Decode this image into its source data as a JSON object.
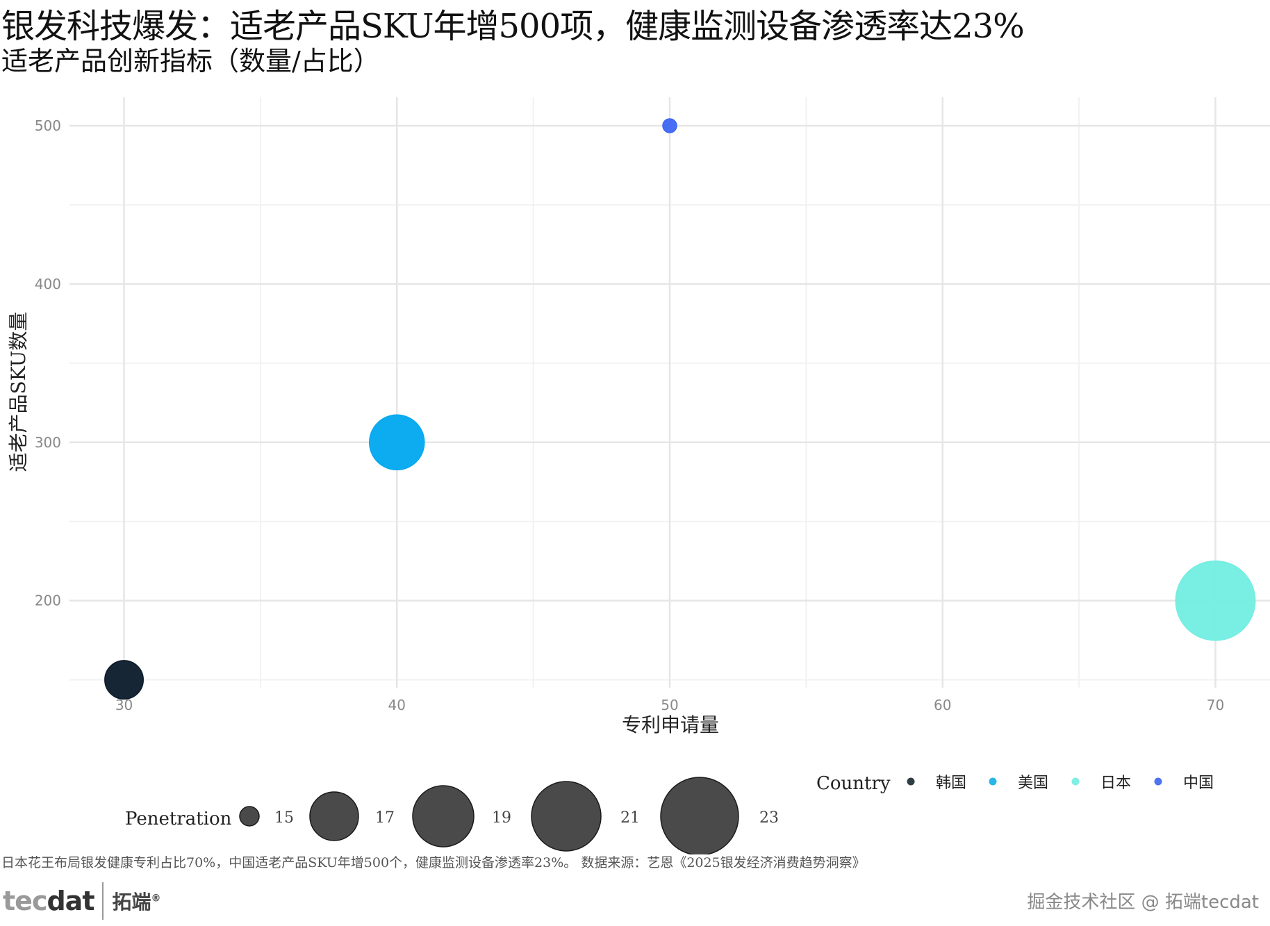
{
  "title": "银发科技爆发：适老产品SKU年增500项，健康监测设备渗透率达23%",
  "subtitle": "适老产品创新指标（数量/占比）",
  "caption": "日本花王布局银发健康专利占比70%，中国适老产品SKU年增500个，健康监测设备渗透率23%。 数据来源：艺恩《2025银发经济消费趋势洞察》",
  "logo": {
    "mark_left": "tec",
    "mark_right": "dat",
    "cn": "拓端",
    "reg": "®"
  },
  "watermark": "掘金技术社区 @ 拓端tecdat",
  "chart_data": {
    "type": "scatter",
    "xlabel": "专利申请量",
    "ylabel": "适老产品SKU数量",
    "xlim": [
      28,
      72
    ],
    "ylim": [
      145,
      518
    ],
    "x_ticks": [
      30,
      40,
      50,
      60,
      70
    ],
    "y_ticks": [
      200,
      300,
      400,
      500
    ],
    "grid": true,
    "points": [
      {
        "country": "韩国",
        "x": 30,
        "y": 150,
        "penetration": 18,
        "color": "#0a1a2a"
      },
      {
        "country": "美国",
        "x": 40,
        "y": 300,
        "penetration": 20,
        "color": "#00a8f0"
      },
      {
        "country": "日本",
        "x": 70,
        "y": 200,
        "penetration": 23,
        "color": "#72ede1"
      },
      {
        "country": "中国",
        "x": 50,
        "y": 500,
        "penetration": 15,
        "color": "#3d66f2"
      }
    ],
    "legend_color": {
      "title": "Country",
      "items": [
        {
          "label": "韩国",
          "color": "#2e3f44"
        },
        {
          "label": "美国",
          "color": "#29b6e8"
        },
        {
          "label": "日本",
          "color": "#80f0e4"
        },
        {
          "label": "中国",
          "color": "#4d73ee"
        }
      ]
    },
    "legend_size": {
      "title": "Penetration",
      "values": [
        15,
        17,
        19,
        21,
        23
      ]
    }
  }
}
